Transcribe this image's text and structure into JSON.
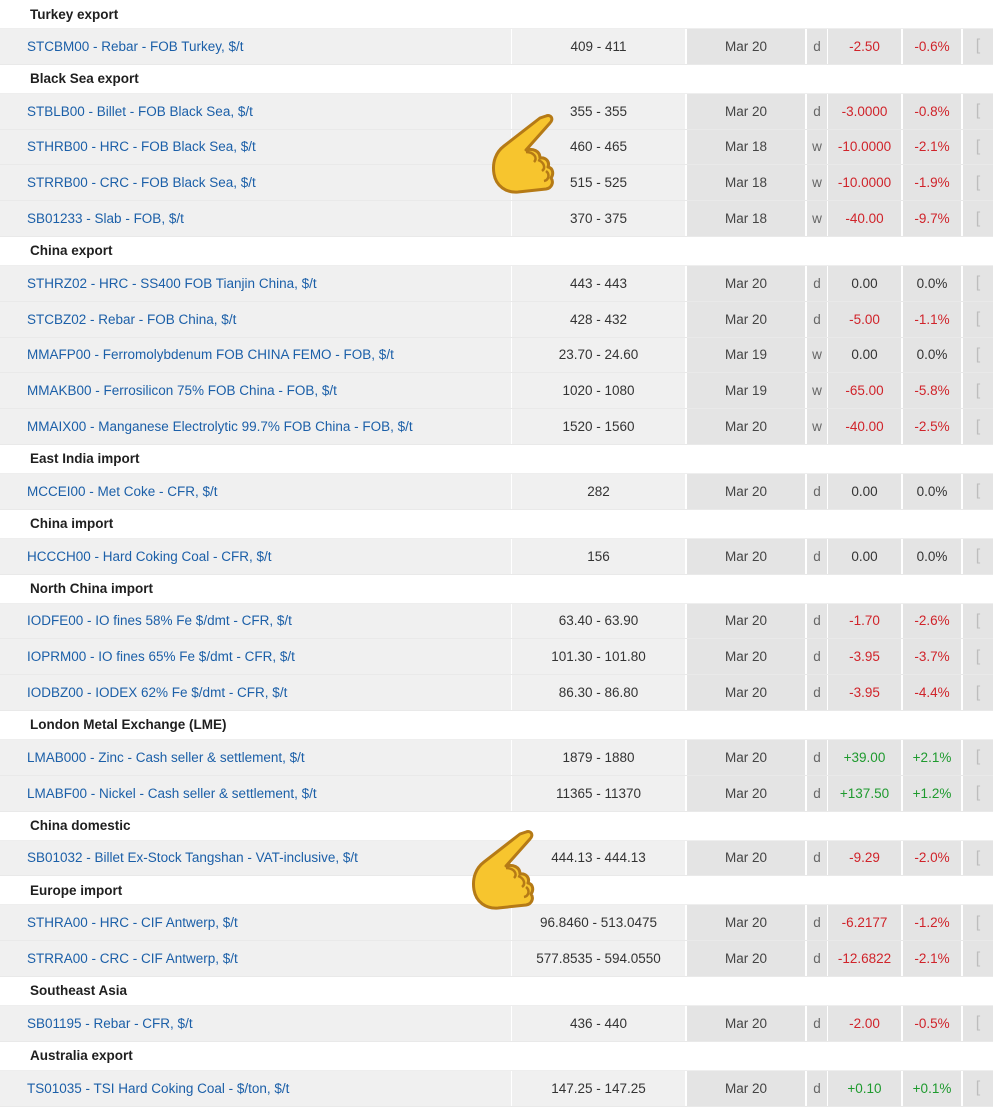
{
  "table": {
    "sections": [
      {
        "title": "Turkey export",
        "rows": [
          {
            "name": "STCBM00 - Rebar - FOB Turkey, $/t",
            "range": "409 - 411",
            "date": "Mar 20",
            "freq": "d",
            "change": "-2.50",
            "pct": "-0.6%",
            "dir": "neg"
          }
        ]
      },
      {
        "title": "Black Sea export",
        "rows": [
          {
            "name": "STBLB00 - Billet - FOB Black Sea, $/t",
            "range": "355 - 355",
            "date": "Mar 20",
            "freq": "d",
            "change": "-3.0000",
            "pct": "-0.8%",
            "dir": "neg"
          },
          {
            "name": "STHRB00 - HRC - FOB Black Sea, $/t",
            "range": "460 - 465",
            "date": "Mar 18",
            "freq": "w",
            "change": "-10.0000",
            "pct": "-2.1%",
            "dir": "neg"
          },
          {
            "name": "STRRB00 - CRC - FOB Black Sea, $/t",
            "range": "515 - 525",
            "date": "Mar 18",
            "freq": "w",
            "change": "-10.0000",
            "pct": "-1.9%",
            "dir": "neg"
          },
          {
            "name": "SB01233 - Slab - FOB, $/t",
            "range": "370 - 375",
            "date": "Mar 18",
            "freq": "w",
            "change": "-40.00",
            "pct": "-9.7%",
            "dir": "neg"
          }
        ]
      },
      {
        "title": "China export",
        "rows": [
          {
            "name": "STHRZ02 - HRC - SS400 FOB Tianjin China, $/t",
            "range": "443 - 443",
            "date": "Mar 20",
            "freq": "d",
            "change": "0.00",
            "pct": "0.0%",
            "dir": "zero"
          },
          {
            "name": "STCBZ02 - Rebar - FOB China, $/t",
            "range": "428 - 432",
            "date": "Mar 20",
            "freq": "d",
            "change": "-5.00",
            "pct": "-1.1%",
            "dir": "neg"
          },
          {
            "name": "MMAFP00 - Ferromolybdenum FOB CHINA FEMO - FOB, $/t",
            "range": "23.70 - 24.60",
            "date": "Mar 19",
            "freq": "w",
            "change": "0.00",
            "pct": "0.0%",
            "dir": "zero"
          },
          {
            "name": "MMAKB00 - Ferrosilicon 75% FOB China - FOB, $/t",
            "range": "1020 - 1080",
            "date": "Mar 19",
            "freq": "w",
            "change": "-65.00",
            "pct": "-5.8%",
            "dir": "neg"
          },
          {
            "name": "MMAIX00 - Manganese Electrolytic 99.7% FOB China - FOB, $/t",
            "range": "1520 - 1560",
            "date": "Mar 20",
            "freq": "w",
            "change": "-40.00",
            "pct": "-2.5%",
            "dir": "neg"
          }
        ]
      },
      {
        "title": "East India import",
        "rows": [
          {
            "name": "MCCEI00 - Met Coke - CFR, $/t",
            "range": "282",
            "date": "Mar 20",
            "freq": "d",
            "change": "0.00",
            "pct": "0.0%",
            "dir": "zero"
          }
        ]
      },
      {
        "title": "China import",
        "rows": [
          {
            "name": "HCCCH00 - Hard Coking Coal - CFR, $/t",
            "range": "156",
            "date": "Mar 20",
            "freq": "d",
            "change": "0.00",
            "pct": "0.0%",
            "dir": "zero"
          }
        ]
      },
      {
        "title": "North China import",
        "rows": [
          {
            "name": "IODFE00 - IO fines 58% Fe $/dmt - CFR, $/t",
            "range": "63.40 - 63.90",
            "date": "Mar 20",
            "freq": "d",
            "change": "-1.70",
            "pct": "-2.6%",
            "dir": "neg"
          },
          {
            "name": "IOPRM00 - IO fines 65% Fe $/dmt - CFR, $/t",
            "range": "101.30 - 101.80",
            "date": "Mar 20",
            "freq": "d",
            "change": "-3.95",
            "pct": "-3.7%",
            "dir": "neg"
          },
          {
            "name": "IODBZ00 - IODEX 62% Fe $/dmt - CFR, $/t",
            "range": "86.30 - 86.80",
            "date": "Mar 20",
            "freq": "d",
            "change": "-3.95",
            "pct": "-4.4%",
            "dir": "neg"
          }
        ]
      },
      {
        "title": "London Metal Exchange (LME)",
        "rows": [
          {
            "name": "LMAB000 - Zinc - Cash seller & settlement, $/t",
            "range": "1879 - 1880",
            "date": "Mar 20",
            "freq": "d",
            "change": "+39.00",
            "pct": "+2.1%",
            "dir": "pos"
          },
          {
            "name": "LMABF00 - Nickel - Cash seller & settlement, $/t",
            "range": "11365 - 11370",
            "date": "Mar 20",
            "freq": "d",
            "change": "+137.50",
            "pct": "+1.2%",
            "dir": "pos"
          }
        ]
      },
      {
        "title": "China domestic",
        "rows": [
          {
            "name": "SB01032 - Billet Ex-Stock Tangshan - VAT-inclusive, $/t",
            "range": "444.13 - 444.13",
            "date": "Mar 20",
            "freq": "d",
            "change": "-9.29",
            "pct": "-2.0%",
            "dir": "neg"
          }
        ]
      },
      {
        "title": "Europe import",
        "rows": [
          {
            "name": "STHRA00 - HRC - CIF Antwerp, $/t",
            "range": "96.8460 - 513.0475",
            "date": "Mar 20",
            "freq": "d",
            "change": "-6.2177",
            "pct": "-1.2%",
            "dir": "neg"
          },
          {
            "name": "STRRA00 - CRC - CIF Antwerp, $/t",
            "range": "577.8535 - 594.0550",
            "date": "Mar 20",
            "freq": "d",
            "change": "-12.6822",
            "pct": "-2.1%",
            "dir": "neg"
          }
        ]
      },
      {
        "title": "Southeast Asia",
        "rows": [
          {
            "name": "SB01195 - Rebar - CFR, $/t",
            "range": "436 - 440",
            "date": "Mar 20",
            "freq": "d",
            "change": "-2.00",
            "pct": "-0.5%",
            "dir": "neg"
          }
        ]
      },
      {
        "title": "Australia export",
        "rows": [
          {
            "name": "TS01035 - TSI Hard Coking Coal - $/ton, $/t",
            "range": "147.25 - 147.25",
            "date": "Mar 20",
            "freq": "d",
            "change": "+0.10",
            "pct": "+0.1%",
            "dir": "pos"
          }
        ]
      }
    ]
  },
  "icons": {
    "action": "bracket-icon",
    "overlay": "pointing-hand-emoji"
  },
  "overlay": {
    "hand_glyph": "👉"
  }
}
